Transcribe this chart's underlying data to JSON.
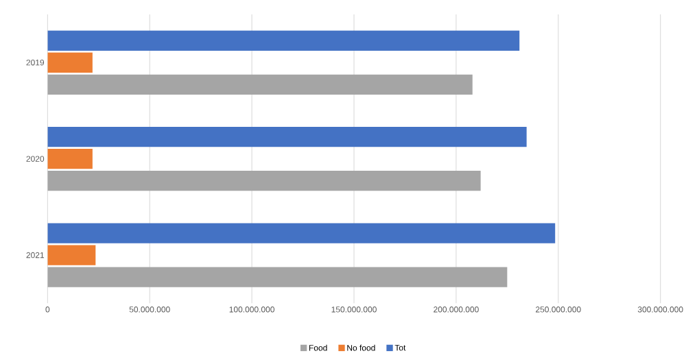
{
  "chart_data": {
    "type": "bar",
    "orientation": "horizontal",
    "categories": [
      "2019",
      "2020",
      "2021"
    ],
    "series": [
      {
        "name": "Food",
        "color": "#a5a5a5",
        "values": [
          208000000,
          212000000,
          225000000
        ]
      },
      {
        "name": "No food",
        "color": "#ed7d31",
        "values": [
          22000000,
          22000000,
          23500000
        ]
      },
      {
        "name": "Tot",
        "color": "#4472c4",
        "values": [
          231000000,
          234500000,
          248500000
        ]
      }
    ],
    "xlim": [
      0,
      300000000
    ],
    "xticks": [
      0,
      {
        "value": 50000000,
        "label": "50.000.000"
      },
      {
        "value": 100000000,
        "label": "100.000.000"
      },
      {
        "value": 150000000,
        "label": "150.000.000"
      },
      {
        "value": 200000000,
        "label": "200.000.000"
      },
      {
        "value": 250000000,
        "label": "250.000.000"
      },
      {
        "value": 300000000,
        "label": "300.000.000"
      }
    ],
    "grid": "x",
    "legend": "bottom"
  }
}
